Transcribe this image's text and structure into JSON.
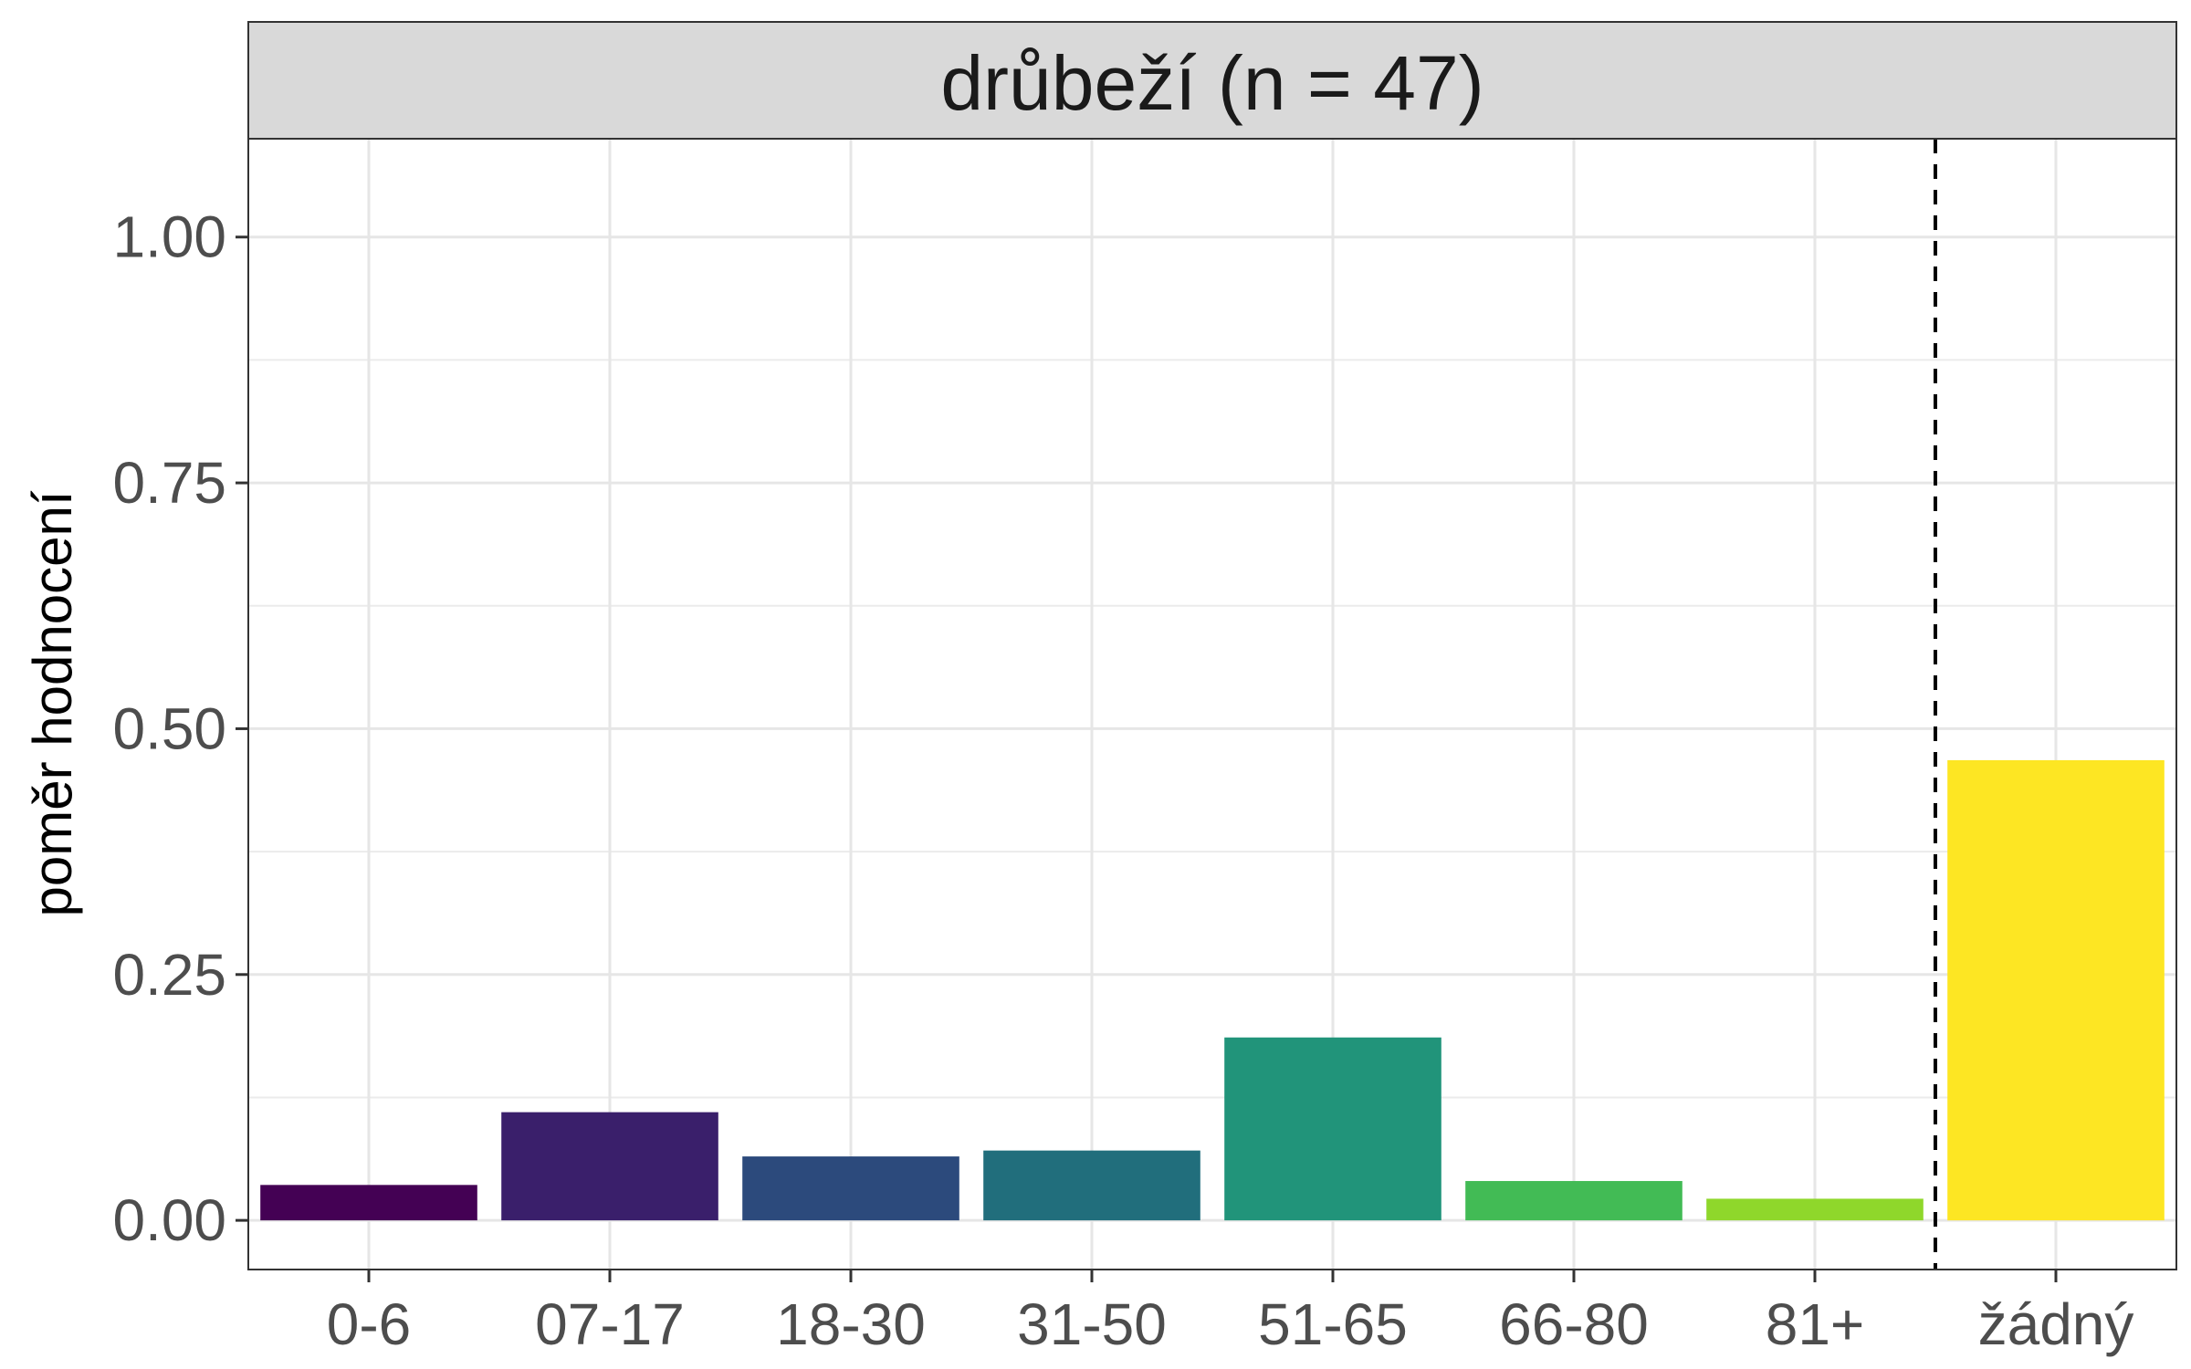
{
  "chart_data": {
    "type": "bar",
    "facet_title": "drůbeží (n = 47)",
    "xlabel": "",
    "ylabel": "poměr hodnocení",
    "categories": [
      "0-6",
      "07-17",
      "18-30",
      "31-50",
      "51-65",
      "66-80",
      "81+",
      "žádný"
    ],
    "values": [
      0.036,
      0.11,
      0.065,
      0.071,
      0.186,
      0.04,
      0.022,
      0.468
    ],
    "colors": [
      "#440154",
      "#3a1f6b",
      "#2c4a7c",
      "#216e7c",
      "#21947a",
      "#42bb55",
      "#8fd72b",
      "#fde623"
    ],
    "ylim": [
      -0.05,
      1.1
    ],
    "yticks": [
      0.0,
      0.25,
      0.5,
      0.75,
      1.0
    ],
    "ytick_labels": [
      "0.00",
      "0.25",
      "0.50",
      "0.75",
      "1.00"
    ],
    "reference_line": {
      "style": "dashed",
      "between_categories": [
        "81+",
        "žádný"
      ]
    },
    "grid": true,
    "legend": "none"
  }
}
